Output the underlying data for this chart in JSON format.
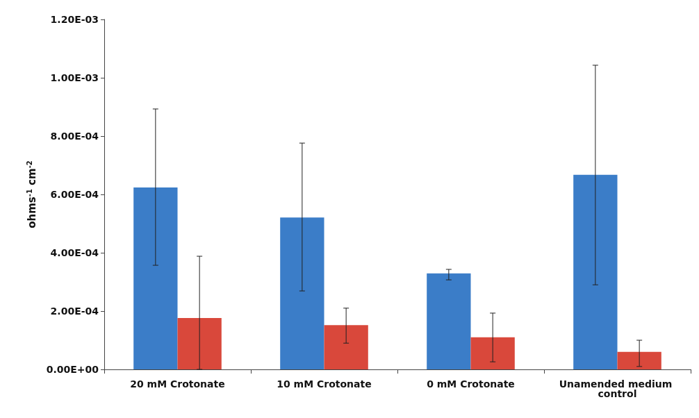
{
  "chart_data": {
    "type": "bar",
    "ylabel": "ohms$^{-1}$ cm$^{-2}$",
    "categories": [
      "20 mM Crotonate",
      "10 mM Crotonate",
      "0 mM Crotonate",
      "Unamended medium control"
    ],
    "series": [
      {
        "color": "#3b7dc8",
        "values": [
          0.000624,
          0.000521,
          0.000329,
          0.000667
        ],
        "errors": [
          [
            0.000357,
            0.000893
          ],
          [
            0.000269,
            0.000776
          ],
          [
            0.000307,
            0.000343
          ],
          [
            0.00029,
            0.001043
          ]
        ]
      },
      {
        "color": "#d9483b",
        "values": [
          0.000176,
          0.000152,
          0.00011,
          6e-05
        ],
        "errors": [
          [
            0,
            0.000388
          ],
          [
            9e-05,
            0.00021
          ],
          [
            2.6e-05,
            0.000193
          ],
          [
            1e-05,
            0.0001
          ]
        ]
      }
    ],
    "ylim": [
      0,
      0.0012
    ],
    "yticks": [
      {
        "value": 0,
        "label": "0.00E+00"
      },
      {
        "value": 0.0002,
        "label": "2.00E-04"
      },
      {
        "value": 0.0004,
        "label": "4.00E-04"
      },
      {
        "value": 0.0006,
        "label": "6.00E-04"
      },
      {
        "value": 0.0008,
        "label": "8.00E-04"
      },
      {
        "value": 0.001,
        "label": "1.00E-03"
      },
      {
        "value": 0.0012,
        "label": "1.20E-03"
      }
    ],
    "grid": false
  }
}
